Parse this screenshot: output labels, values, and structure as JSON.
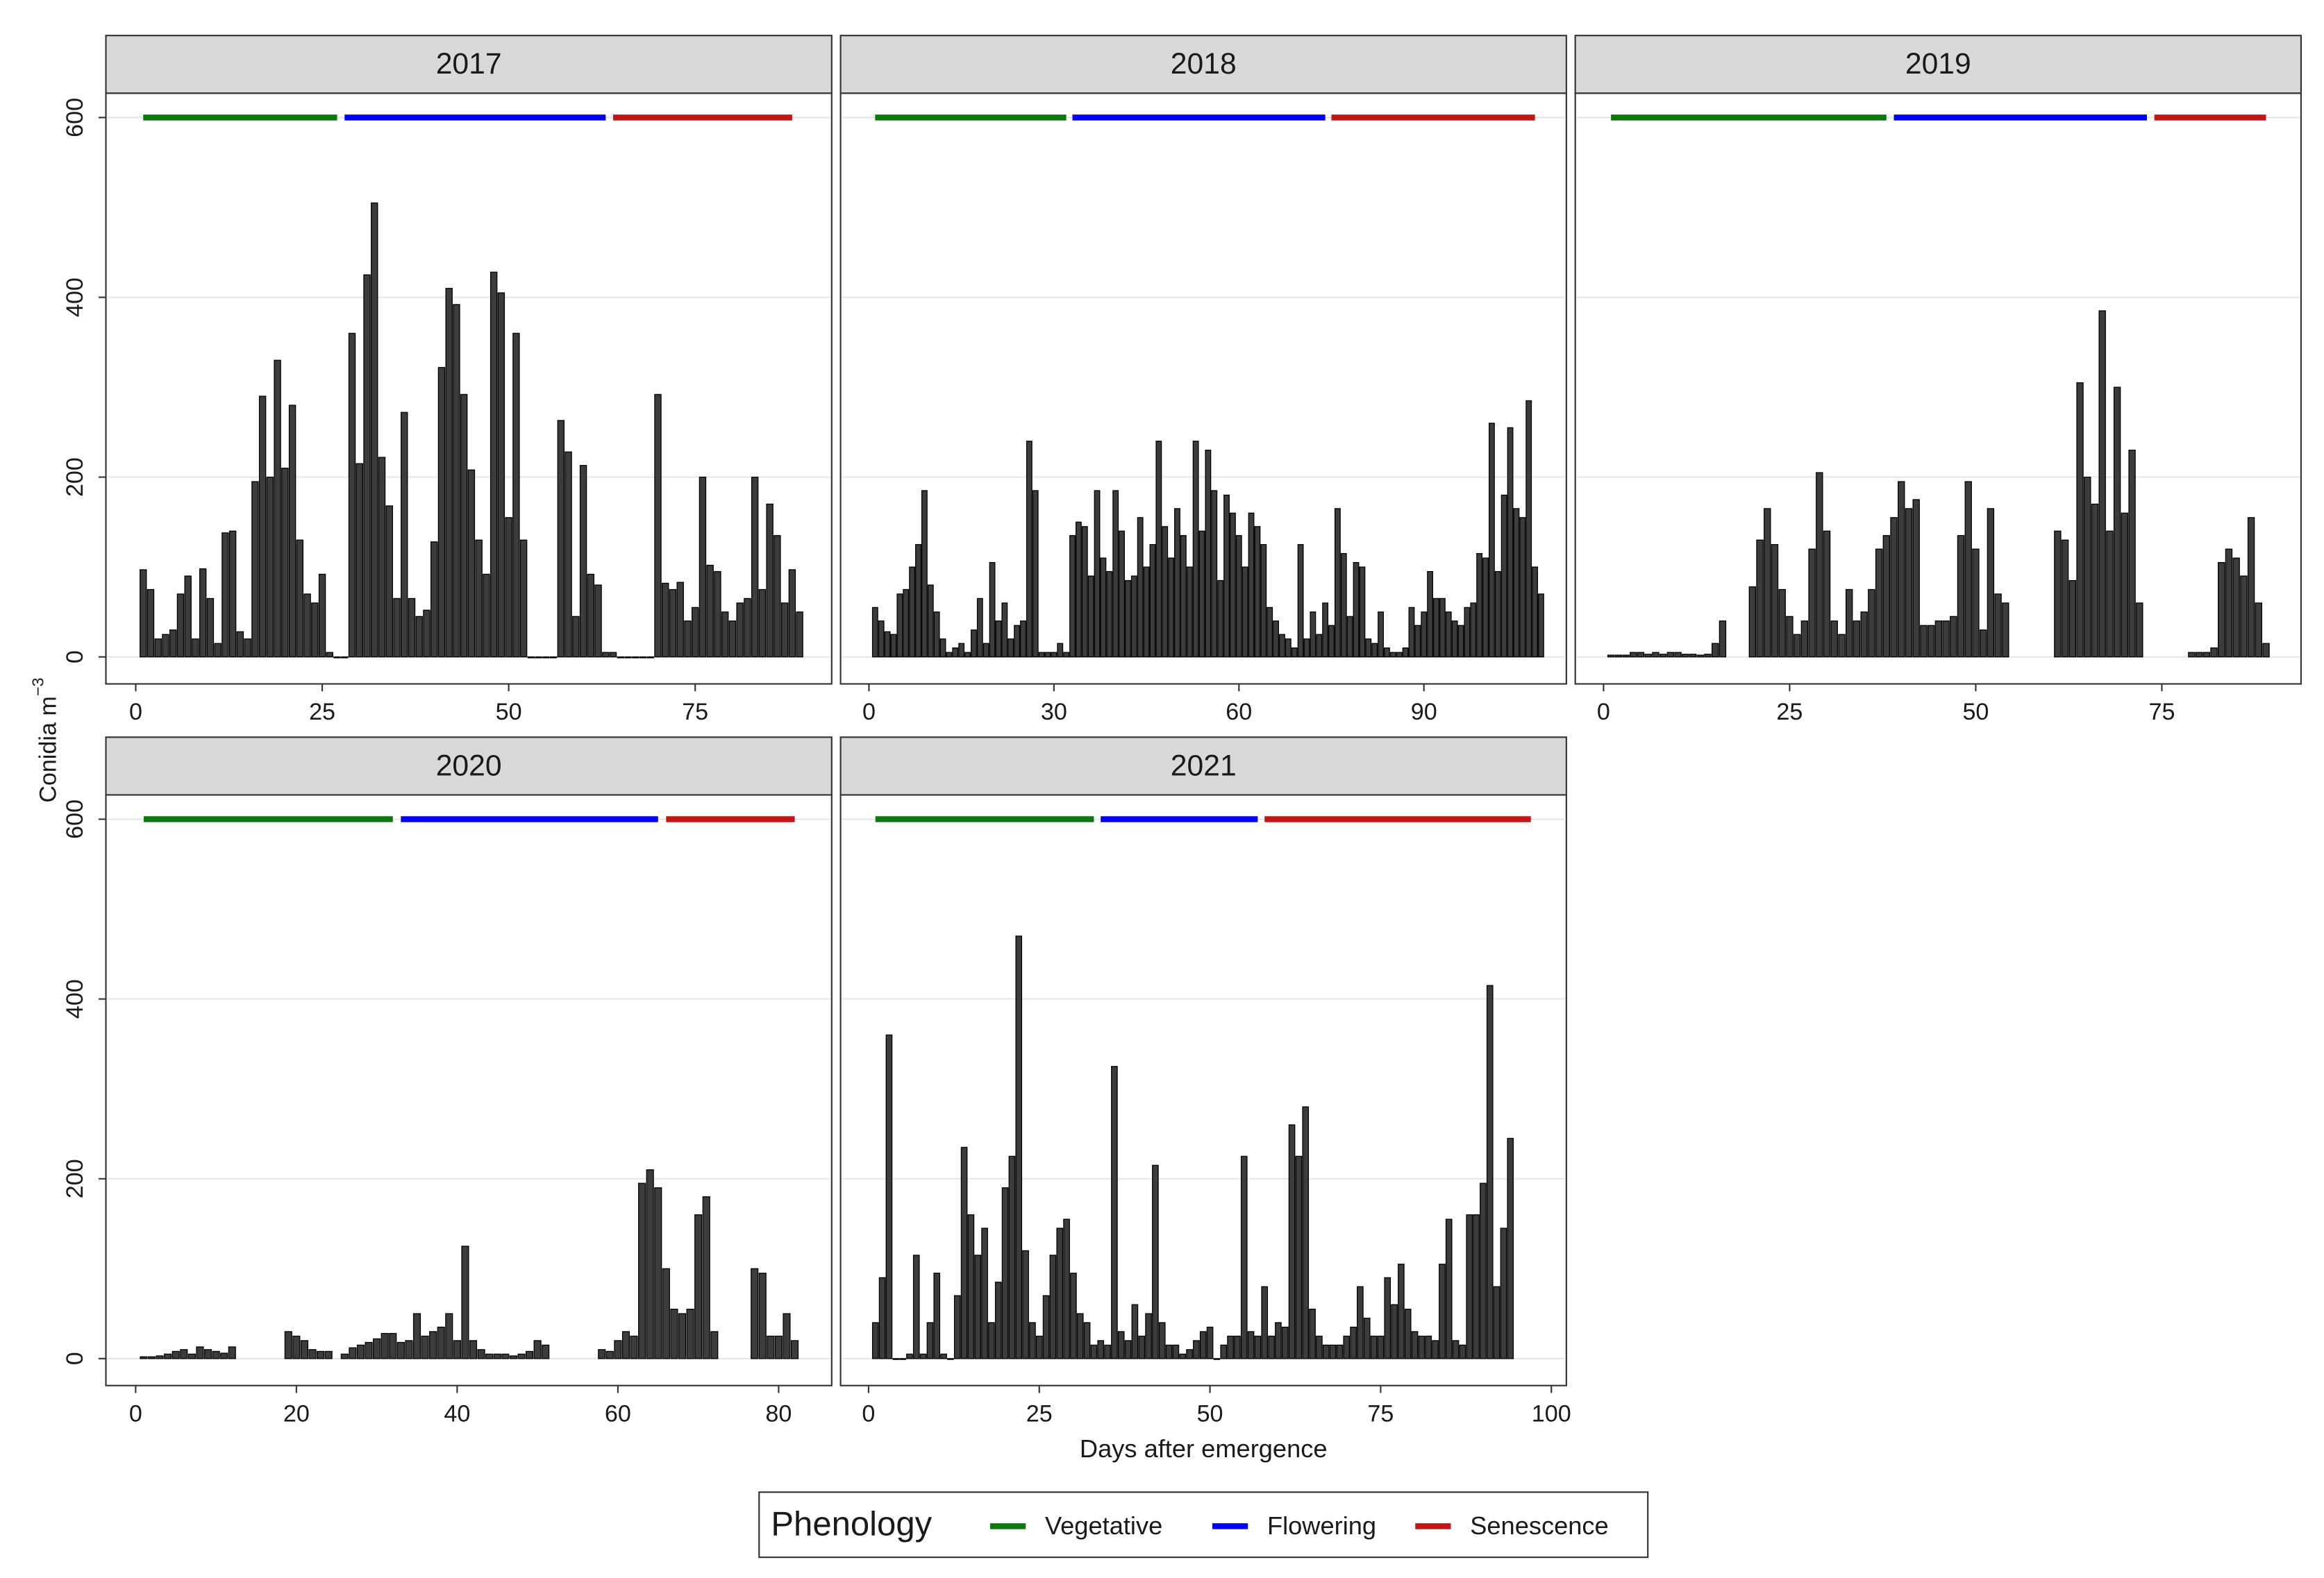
{
  "y_label": "Conidia m",
  "y_label_superscript": "−3",
  "x_label": "Days after emergence",
  "legend": {
    "title": "Phenology",
    "items": [
      {
        "name": "Vegetative",
        "color": "#0b7a0b"
      },
      {
        "name": "Flowering",
        "color": "#0000ff"
      },
      {
        "name": "Senescence",
        "color": "#c41414"
      }
    ]
  },
  "chart_data": [
    {
      "type": "bar",
      "title": "2017",
      "color": "#3c3c3c",
      "grid": true,
      "xlim": [
        -4,
        93.3
      ],
      "xticks": [
        0,
        25,
        50,
        75
      ],
      "ylim": [
        -30,
        627
      ],
      "yticks": [
        0,
        200,
        400,
        600
      ],
      "phases": [
        {
          "start": 1,
          "end": 27
        },
        {
          "start": 28,
          "end": 63
        },
        {
          "start": 64,
          "end": 88
        }
      ],
      "x": [
        1,
        2,
        3,
        4,
        5,
        6,
        7,
        8,
        9,
        10,
        11,
        12,
        13,
        14,
        15,
        16,
        17,
        18,
        19,
        20,
        21,
        22,
        23,
        24,
        25,
        26,
        27,
        28,
        29,
        30,
        31,
        32,
        33,
        34,
        35,
        36,
        37,
        38,
        39,
        40,
        41,
        42,
        43,
        44,
        45,
        46,
        47,
        48,
        49,
        50,
        51,
        52,
        53,
        54,
        55,
        56,
        57,
        58,
        59,
        60,
        61,
        62,
        63,
        64,
        65,
        66,
        67,
        68,
        69,
        70,
        71,
        72,
        73,
        74,
        75,
        76,
        77,
        78,
        79,
        80,
        81,
        82,
        83,
        84,
        85,
        86,
        87,
        88,
        89
      ],
      "values": [
        97,
        75,
        20,
        25,
        30,
        70,
        90,
        20,
        98,
        65,
        15,
        138,
        140,
        28,
        20,
        195,
        290,
        200,
        330,
        210,
        280,
        130,
        70,
        60,
        92,
        5,
        0,
        0,
        360,
        215,
        425,
        505,
        222,
        168,
        65,
        272,
        65,
        45,
        52,
        128,
        322,
        410,
        392,
        292,
        208,
        130,
        92,
        428,
        405,
        155,
        360,
        130,
        0,
        0,
        0,
        0,
        263,
        228,
        45,
        213,
        92,
        80,
        5,
        5,
        0,
        0,
        0,
        0,
        0,
        292,
        82,
        75,
        83,
        40,
        55,
        200,
        102,
        95,
        50,
        40,
        60,
        65,
        200,
        75,
        170,
        135,
        60,
        97,
        50
      ]
    },
    {
      "type": "bar",
      "title": "2018",
      "color": "#3c3c3c",
      "grid": true,
      "xlim": [
        -4.6,
        113.1
      ],
      "xticks": [
        0,
        30,
        60,
        90
      ],
      "ylim": [
        -30,
        627
      ],
      "yticks": [
        0,
        200,
        400,
        600
      ],
      "phases": [
        {
          "start": 1,
          "end": 32
        },
        {
          "start": 33,
          "end": 74
        },
        {
          "start": 75,
          "end": 108
        }
      ],
      "x": [
        1,
        2,
        3,
        4,
        5,
        6,
        7,
        8,
        9,
        10,
        11,
        12,
        13,
        14,
        15,
        16,
        17,
        18,
        19,
        20,
        21,
        22,
        23,
        24,
        25,
        26,
        27,
        28,
        29,
        30,
        31,
        32,
        33,
        34,
        35,
        36,
        37,
        38,
        39,
        40,
        41,
        42,
        43,
        44,
        45,
        46,
        47,
        48,
        49,
        50,
        51,
        52,
        53,
        54,
        55,
        56,
        57,
        58,
        59,
        60,
        61,
        62,
        63,
        64,
        65,
        66,
        67,
        68,
        69,
        70,
        71,
        72,
        73,
        74,
        75,
        76,
        77,
        78,
        79,
        80,
        81,
        82,
        83,
        84,
        85,
        86,
        87,
        88,
        89,
        90,
        91,
        92,
        93,
        94,
        95,
        96,
        97,
        98,
        99,
        100,
        101,
        102,
        103,
        104,
        105,
        106,
        107,
        108,
        109
      ],
      "values": [
        55,
        40,
        28,
        25,
        70,
        75,
        100,
        125,
        185,
        80,
        50,
        20,
        5,
        10,
        15,
        5,
        30,
        65,
        15,
        105,
        40,
        60,
        20,
        35,
        40,
        240,
        185,
        5,
        5,
        5,
        15,
        5,
        135,
        150,
        145,
        90,
        185,
        110,
        95,
        185,
        140,
        85,
        90,
        155,
        100,
        125,
        240,
        145,
        110,
        165,
        135,
        100,
        240,
        140,
        230,
        185,
        85,
        180,
        160,
        135,
        100,
        160,
        145,
        125,
        55,
        40,
        25,
        20,
        10,
        125,
        20,
        50,
        25,
        60,
        35,
        165,
        115,
        45,
        105,
        100,
        20,
        15,
        50,
        10,
        5,
        5,
        10,
        55,
        35,
        50,
        95,
        65,
        65,
        50,
        40,
        35,
        55,
        60,
        115,
        110,
        260,
        95,
        180,
        255,
        165,
        155,
        285,
        100,
        70
      ]
    },
    {
      "type": "bar",
      "title": "2019",
      "color": "#3c3c3c",
      "grid": true,
      "xlim": [
        -3.8,
        93.7
      ],
      "xticks": [
        0,
        25,
        50,
        75
      ],
      "ylim": [
        -30,
        627
      ],
      "yticks": [
        0,
        200,
        400,
        600
      ],
      "phases": [
        {
          "start": 1,
          "end": 38
        },
        {
          "start": 39,
          "end": 73
        },
        {
          "start": 74,
          "end": 89
        }
      ],
      "x": [
        1,
        2,
        3,
        4,
        5,
        6,
        7,
        8,
        9,
        10,
        11,
        12,
        13,
        14,
        15,
        16,
        17,
        18,
        19,
        20,
        21,
        22,
        23,
        24,
        25,
        26,
        27,
        28,
        29,
        30,
        31,
        32,
        33,
        34,
        35,
        36,
        37,
        38,
        39,
        40,
        41,
        42,
        43,
        44,
        45,
        46,
        47,
        48,
        49,
        50,
        51,
        52,
        53,
        54,
        55,
        56,
        57,
        58,
        59,
        60,
        61,
        62,
        63,
        64,
        65,
        66,
        67,
        68,
        69,
        70,
        71,
        72,
        73,
        74,
        75,
        76,
        77,
        78,
        79,
        80,
        81,
        82,
        83,
        84,
        85,
        86,
        87,
        88,
        89
      ],
      "values": [
        2,
        2,
        2,
        5,
        5,
        3,
        5,
        3,
        5,
        5,
        3,
        3,
        2,
        3,
        15,
        40,
        null,
        null,
        null,
        78,
        130,
        165,
        125,
        75,
        45,
        25,
        40,
        120,
        205,
        140,
        40,
        25,
        75,
        40,
        50,
        75,
        120,
        135,
        155,
        195,
        165,
        175,
        35,
        35,
        40,
        40,
        45,
        135,
        195,
        120,
        30,
        165,
        70,
        60,
        null,
        null,
        null,
        null,
        null,
        null,
        140,
        130,
        85,
        305,
        200,
        170,
        385,
        140,
        300,
        160,
        230,
        60,
        null,
        null,
        null,
        null,
        null,
        null,
        5,
        5,
        5,
        10,
        105,
        120,
        110,
        90,
        155,
        60,
        15
      ]
    },
    {
      "type": "bar",
      "title": "2020",
      "color": "#3c3c3c",
      "grid": true,
      "xlim": [
        -3.7,
        86.6
      ],
      "xticks": [
        0,
        20,
        40,
        60,
        80
      ],
      "ylim": [
        -30,
        627
      ],
      "yticks": [
        0,
        200,
        400,
        600
      ],
      "phases": [
        {
          "start": 1,
          "end": 32
        },
        {
          "start": 33,
          "end": 65
        },
        {
          "start": 66,
          "end": 82
        }
      ],
      "x": [
        1,
        2,
        3,
        4,
        5,
        6,
        7,
        8,
        9,
        10,
        11,
        12,
        13,
        14,
        15,
        16,
        17,
        18,
        19,
        20,
        21,
        22,
        23,
        24,
        25,
        26,
        27,
        28,
        29,
        30,
        31,
        32,
        33,
        34,
        35,
        36,
        37,
        38,
        39,
        40,
        41,
        42,
        43,
        44,
        45,
        46,
        47,
        48,
        49,
        50,
        51,
        52,
        53,
        54,
        55,
        56,
        57,
        58,
        59,
        60,
        61,
        62,
        63,
        64,
        65,
        66,
        67,
        68,
        69,
        70,
        71,
        72,
        73,
        74,
        75,
        76,
        77,
        78,
        79,
        80,
        81,
        82
      ],
      "values": [
        2,
        2,
        3,
        5,
        8,
        10,
        5,
        13,
        10,
        8,
        6,
        13,
        null,
        null,
        null,
        null,
        null,
        null,
        30,
        25,
        20,
        10,
        8,
        8,
        null,
        5,
        12,
        15,
        18,
        22,
        28,
        28,
        18,
        20,
        50,
        25,
        30,
        35,
        50,
        20,
        125,
        20,
        10,
        5,
        5,
        5,
        3,
        5,
        8,
        20,
        15,
        null,
        null,
        null,
        null,
        null,
        null,
        10,
        8,
        20,
        30,
        25,
        195,
        210,
        190,
        100,
        55,
        50,
        55,
        160,
        180,
        30,
        null,
        null,
        null,
        null,
        100,
        95,
        25,
        25,
        50,
        20
      ]
    },
    {
      "type": "bar",
      "title": "2021",
      "color": "#3c3c3c",
      "grid": true,
      "xlim": [
        -4.1,
        102.2
      ],
      "xticks": [
        0,
        25,
        50,
        75,
        100
      ],
      "ylim": [
        -30,
        627
      ],
      "yticks": [
        0,
        200,
        400,
        600
      ],
      "phases": [
        {
          "start": 1,
          "end": 33
        },
        {
          "start": 34,
          "end": 57
        },
        {
          "start": 58,
          "end": 97
        }
      ],
      "x": [
        1,
        2,
        3,
        4,
        5,
        6,
        7,
        8,
        9,
        10,
        11,
        12,
        13,
        14,
        15,
        16,
        17,
        18,
        19,
        20,
        21,
        22,
        23,
        24,
        25,
        26,
        27,
        28,
        29,
        30,
        31,
        32,
        33,
        34,
        35,
        36,
        37,
        38,
        39,
        40,
        41,
        42,
        43,
        44,
        45,
        46,
        47,
        48,
        49,
        50,
        51,
        52,
        53,
        54,
        55,
        56,
        57,
        58,
        59,
        60,
        61,
        62,
        63,
        64,
        65,
        66,
        67,
        68,
        69,
        70,
        71,
        72,
        73,
        74,
        75,
        76,
        77,
        78,
        79,
        80,
        81,
        82,
        83,
        84,
        85,
        86,
        87,
        88,
        89,
        90,
        91,
        92,
        93,
        94
      ],
      "values": [
        40,
        90,
        360,
        0,
        0,
        5,
        115,
        5,
        40,
        95,
        5,
        0,
        70,
        235,
        160,
        115,
        145,
        40,
        85,
        190,
        225,
        470,
        120,
        40,
        25,
        70,
        115,
        145,
        155,
        95,
        50,
        40,
        15,
        20,
        15,
        325,
        30,
        20,
        60,
        25,
        50,
        215,
        40,
        15,
        15,
        5,
        10,
        20,
        30,
        35,
        0,
        15,
        25,
        25,
        225,
        30,
        25,
        80,
        25,
        40,
        35,
        260,
        225,
        280,
        55,
        25,
        15,
        15,
        15,
        25,
        35,
        80,
        45,
        25,
        25,
        90,
        60,
        105,
        55,
        30,
        25,
        25,
        20,
        105,
        155,
        20,
        15,
        160,
        160,
        195,
        415,
        80,
        145,
        245
      ]
    }
  ]
}
